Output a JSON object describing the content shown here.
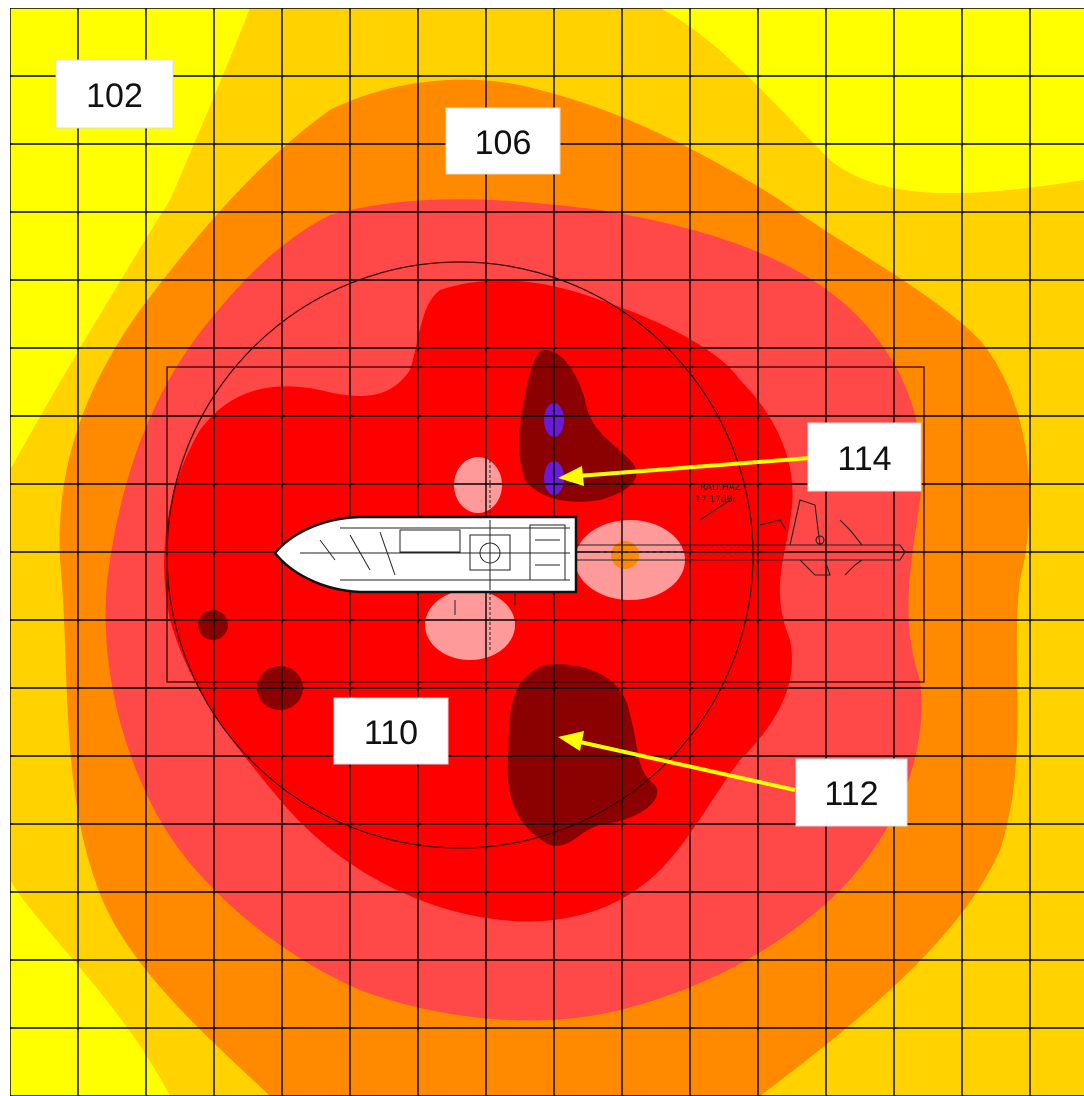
{
  "figure": {
    "colors": {
      "background": "#ffffff",
      "zone_outer": "#ffff00",
      "zone_second": "#ffd200",
      "zone_third": "#ff8a00",
      "zone_fourth": "#ff4848",
      "zone_inner": "#ff0000",
      "zone_peak": "#8b0000",
      "zone_light_pink": "#ff9a9a",
      "hot_spot": "#6a1bd8",
      "arrow": "#ffff00",
      "grid": "#000000",
      "ship_fill": "#ffffff"
    },
    "callouts": [
      {
        "id": "102",
        "label": "102"
      },
      {
        "id": "106",
        "label": "106"
      },
      {
        "id": "110",
        "label": "110"
      },
      {
        "id": "112",
        "label": "112"
      },
      {
        "id": "114",
        "label": "114"
      }
    ],
    "vessel_labels": {
      "line1": "RAD.HAZ",
      "line2": "17.17dBi"
    },
    "icons": [
      "ship-outline-icon",
      "aircraft-outline-icon",
      "arrow-icon"
    ]
  }
}
